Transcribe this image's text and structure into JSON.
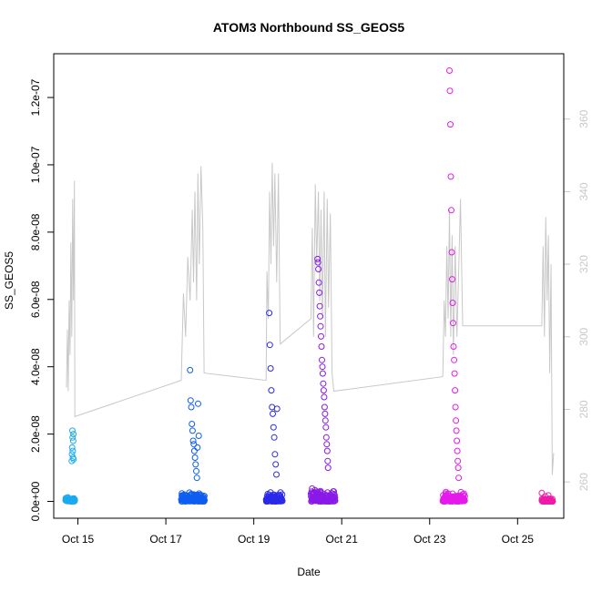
{
  "chart_data": {
    "type": "scatter",
    "title": "ATOM3 Northbound SS_GEOS5",
    "xlabel": "Date",
    "ylabel": "SS_GEOS5",
    "x_ticks": [
      "Oct 15",
      "Oct 17",
      "Oct 19",
      "Oct 21",
      "Oct 23",
      "Oct 25"
    ],
    "x_tick_days": [
      15,
      17,
      19,
      21,
      23,
      25
    ],
    "xlim": [
      14.45,
      26.05
    ],
    "y_ticks": [
      "0.0e+00",
      "2.0e-08",
      "4.0e-08",
      "6.0e-08",
      "8.0e-08",
      "1.0e-07",
      "1.2e-07"
    ],
    "y_tick_values": [
      0,
      2e-08,
      4e-08,
      6e-08,
      8e-08,
      1e-07,
      1.2e-07
    ],
    "ylim": [
      -5e-09,
      1.33e-07
    ],
    "y2_ticks": [
      "260",
      "280",
      "300",
      "320",
      "340",
      "360"
    ],
    "y2_tick_values": [
      260,
      280,
      300,
      320,
      340,
      360
    ],
    "y2lim": [
      250,
      378
    ],
    "grid": false,
    "legend": "none",
    "series": [
      {
        "color": "#1aaaf0",
        "marker": "open-circle",
        "flights": [
          {
            "start": 14.72,
            "end": 14.93,
            "base_max": 1.5e-09,
            "peak_start": 14.86,
            "peak_values": [
              1.2e-08,
              1.4e-08,
              1.6e-08,
              2.1e-08,
              1.9e-08,
              1.5e-08,
              1.3e-08,
              1.8e-08,
              2e-08,
              1.25e-08
            ]
          }
        ]
      },
      {
        "color": "#0f5df0",
        "marker": "open-circle",
        "flights": [
          {
            "start": 17.35,
            "end": 17.88,
            "base_max": 3e-09,
            "peak_start": 17.55,
            "peak_values": [
              3.9e-08,
              3e-08,
              2.8e-08,
              2.3e-08,
              2.1e-08,
              1.8e-08,
              1.7e-08,
              1.5e-08,
              1.3e-08,
              1.1e-08,
              9e-09,
              7e-09,
              1.6e-08,
              2.9e-08,
              1.95e-08
            ]
          }
        ]
      },
      {
        "color": "#2b2ae8",
        "marker": "open-circle",
        "flights": [
          {
            "start": 19.28,
            "end": 19.65,
            "base_max": 3e-09,
            "peak_start": 19.35,
            "peak_values": [
              5.6e-08,
              4.65e-08,
              3.95e-08,
              3.3e-08,
              2.8e-08,
              2.6e-08,
              2.2e-08,
              1.9e-08,
              1.4e-08,
              1.1e-08,
              8e-09,
              2.75e-08
            ]
          }
        ]
      },
      {
        "color": "#8a1ae8",
        "marker": "open-circle",
        "flights": [
          {
            "start": 20.3,
            "end": 20.85,
            "base_max": 4e-09,
            "peak_start": 20.45,
            "peak_values": [
              7.2e-08,
              7.1e-08,
              6.9e-08,
              6.5e-08,
              6.2e-08,
              5.8e-08,
              5.5e-08,
              5.2e-08,
              4.9e-08,
              4.6e-08,
              4.2e-08,
              4e-08,
              3.8e-08,
              3.5e-08,
              3.3e-08,
              3.1e-08,
              2.8e-08,
              2.6e-08,
              2.4e-08,
              2.2e-08,
              1.9e-08,
              1.7e-08,
              1.5e-08,
              1.2e-08,
              1e-08
            ]
          }
        ]
      },
      {
        "color": "#e41aea",
        "marker": "open-circle",
        "flights": [
          {
            "start": 23.3,
            "end": 23.8,
            "base_max": 3e-09,
            "peak_start": 23.45,
            "peak_values": [
              1.28e-07,
              1.22e-07,
              1.12e-07,
              9.65e-08,
              8.65e-08,
              7.4e-08,
              6.6e-08,
              5.9e-08,
              5.3e-08,
              4.6e-08,
              4.2e-08,
              3.8e-08,
              3.3e-08,
              2.8e-08,
              2.4e-08,
              2.1e-08,
              1.8e-08,
              1.5e-08,
              1.2e-08,
              1e-08,
              7e-09
            ]
          }
        ]
      },
      {
        "color": "#f01aa8",
        "marker": "open-circle",
        "flights": [
          {
            "start": 25.55,
            "end": 25.8,
            "base_max": 1e-09,
            "peak_start": 25.55,
            "peak_values": [
              2.5e-09,
              1.5e-09,
              1.8e-09
            ]
          }
        ]
      }
    ],
    "line_series": {
      "axis": "right",
      "color": "#c8c8c8",
      "points": [
        [
          14.74,
          286
        ],
        [
          14.76,
          302
        ],
        [
          14.78,
          285
        ],
        [
          14.8,
          310
        ],
        [
          14.82,
          295
        ],
        [
          14.84,
          326
        ],
        [
          14.86,
          300
        ],
        [
          14.88,
          338
        ],
        [
          14.9,
          310
        ],
        [
          14.92,
          343
        ],
        [
          14.93,
          278
        ],
        [
          17.35,
          288
        ],
        [
          17.4,
          312
        ],
        [
          17.45,
          300
        ],
        [
          17.5,
          322
        ],
        [
          17.55,
          310
        ],
        [
          17.6,
          335
        ],
        [
          17.63,
          315
        ],
        [
          17.66,
          340
        ],
        [
          17.7,
          310
        ],
        [
          17.73,
          345
        ],
        [
          17.76,
          320
        ],
        [
          17.8,
          347
        ],
        [
          17.84,
          330
        ],
        [
          17.87,
          290
        ],
        [
          19.28,
          288
        ],
        [
          19.3,
          318
        ],
        [
          19.33,
          305
        ],
        [
          19.36,
          340
        ],
        [
          19.39,
          320
        ],
        [
          19.42,
          348
        ],
        [
          19.45,
          325
        ],
        [
          19.48,
          345
        ],
        [
          19.52,
          315
        ],
        [
          19.56,
          345
        ],
        [
          19.6,
          298
        ],
        [
          20.3,
          305
        ],
        [
          20.33,
          330
        ],
        [
          20.36,
          300
        ],
        [
          20.4,
          342
        ],
        [
          20.43,
          320
        ],
        [
          20.47,
          340
        ],
        [
          20.5,
          310
        ],
        [
          20.53,
          335
        ],
        [
          20.56,
          305
        ],
        [
          20.6,
          340
        ],
        [
          20.63,
          300
        ],
        [
          20.67,
          338
        ],
        [
          20.7,
          308
        ],
        [
          20.74,
          334
        ],
        [
          20.78,
          290
        ],
        [
          20.82,
          285
        ],
        [
          23.3,
          289
        ],
        [
          23.33,
          310
        ],
        [
          23.36,
          300
        ],
        [
          23.39,
          325
        ],
        [
          23.42,
          305
        ],
        [
          23.45,
          335
        ],
        [
          23.48,
          300
        ],
        [
          23.51,
          328
        ],
        [
          23.54,
          295
        ],
        [
          23.58,
          325
        ],
        [
          23.62,
          300
        ],
        [
          23.66,
          318
        ],
        [
          23.7,
          338
        ],
        [
          23.75,
          303
        ],
        [
          25.55,
          303
        ],
        [
          25.58,
          325
        ],
        [
          25.61,
          300
        ],
        [
          25.64,
          333
        ],
        [
          25.67,
          310
        ],
        [
          25.7,
          328
        ],
        [
          25.73,
          290
        ],
        [
          25.76,
          320
        ],
        [
          25.79,
          262
        ],
        [
          25.82,
          268
        ]
      ]
    }
  }
}
